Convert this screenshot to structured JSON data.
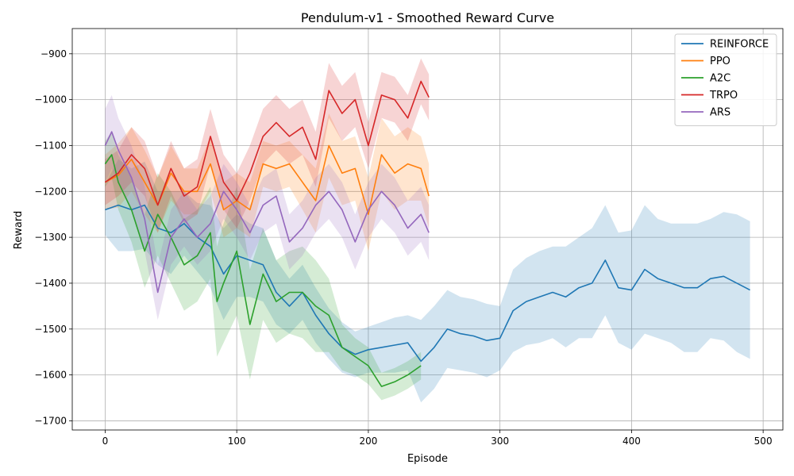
{
  "chart_data": {
    "type": "line",
    "title": "Pendulum-v1 - Smoothed Reward Curve",
    "xlabel": "Episode",
    "ylabel": "Reward",
    "xlim": [
      -25,
      515
    ],
    "ylim": [
      -1720,
      -845
    ],
    "xticks": [
      0,
      100,
      200,
      300,
      400,
      500
    ],
    "xtick_labels": [
      "0",
      "100",
      "200",
      "300",
      "400",
      "500"
    ],
    "yticks": [
      -1700,
      -1600,
      -1500,
      -1400,
      -1300,
      -1200,
      -1100,
      -1000,
      -900
    ],
    "ytick_labels": [
      "−1700",
      "−1600",
      "−1500",
      "−1400",
      "−1300",
      "−1200",
      "−1100",
      "−1000",
      "−900"
    ],
    "grid": true,
    "legend_position": "top-right",
    "series": [
      {
        "name": "REINFORCE",
        "color": "#1f77b4",
        "x": [
          0,
          10,
          20,
          30,
          40,
          50,
          60,
          70,
          80,
          90,
          100,
          110,
          120,
          130,
          140,
          150,
          160,
          170,
          180,
          190,
          200,
          210,
          220,
          230,
          240,
          250,
          260,
          270,
          280,
          290,
          300,
          310,
          320,
          330,
          340,
          350,
          360,
          370,
          380,
          390,
          400,
          410,
          420,
          430,
          440,
          450,
          460,
          470,
          480,
          490
        ],
        "y": [
          -1240,
          -1230,
          -1240,
          -1230,
          -1280,
          -1290,
          -1270,
          -1300,
          -1320,
          -1380,
          -1340,
          -1350,
          -1360,
          -1420,
          -1450,
          -1420,
          -1470,
          -1510,
          -1540,
          -1555,
          -1545,
          -1540,
          -1535,
          -1530,
          -1570,
          -1540,
          -1500,
          -1510,
          -1515,
          -1525,
          -1520,
          -1460,
          -1440,
          -1430,
          -1420,
          -1430,
          -1410,
          -1400,
          -1350,
          -1410,
          -1415,
          -1370,
          -1390,
          -1400,
          -1410,
          -1410,
          -1390,
          -1385,
          -1400,
          -1415
        ],
        "band": [
          55,
          100,
          90,
          95,
          80,
          90,
          70,
          75,
          90,
          100,
          90,
          80,
          80,
          70,
          60,
          60,
          60,
          55,
          55,
          50,
          50,
          55,
          60,
          60,
          90,
          90,
          85,
          80,
          80,
          80,
          70,
          90,
          95,
          100,
          100,
          110,
          110,
          120,
          120,
          120,
          130,
          140,
          130,
          130,
          140,
          140,
          130,
          140,
          150,
          150
        ]
      },
      {
        "name": "PPO",
        "color": "#ff7f0e",
        "x": [
          0,
          10,
          20,
          30,
          40,
          50,
          60,
          70,
          80,
          90,
          100,
          110,
          120,
          130,
          140,
          150,
          160,
          170,
          180,
          190,
          200,
          210,
          220,
          230,
          240,
          246
        ],
        "y": [
          -1180,
          -1165,
          -1130,
          -1180,
          -1230,
          -1160,
          -1200,
          -1200,
          -1140,
          -1240,
          -1220,
          -1240,
          -1140,
          -1150,
          -1140,
          -1180,
          -1220,
          -1100,
          -1160,
          -1150,
          -1250,
          -1120,
          -1160,
          -1140,
          -1150,
          -1210
        ],
        "band": [
          60,
          70,
          70,
          70,
          60,
          60,
          50,
          50,
          60,
          60,
          60,
          60,
          50,
          50,
          50,
          60,
          70,
          70,
          70,
          70,
          80,
          80,
          80,
          80,
          70,
          70
        ]
      },
      {
        "name": "A2C",
        "color": "#2ca02c",
        "x": [
          0,
          5,
          10,
          20,
          30,
          40,
          50,
          60,
          70,
          80,
          85,
          90,
          100,
          110,
          120,
          130,
          140,
          150,
          160,
          170,
          180,
          190,
          200,
          210,
          220,
          230,
          240
        ],
        "y": [
          -1140,
          -1120,
          -1180,
          -1240,
          -1330,
          -1250,
          -1300,
          -1360,
          -1340,
          -1290,
          -1440,
          -1400,
          -1330,
          -1490,
          -1380,
          -1440,
          -1420,
          -1420,
          -1450,
          -1470,
          -1540,
          -1560,
          -1580,
          -1625,
          -1615,
          -1600,
          -1580
        ],
        "band": [
          50,
          50,
          60,
          70,
          80,
          90,
          100,
          100,
          100,
          100,
          120,
          130,
          140,
          120,
          100,
          90,
          90,
          100,
          100,
          80,
          50,
          40,
          40,
          30,
          30,
          30,
          30
        ]
      },
      {
        "name": "TRPO",
        "color": "#d62728",
        "x": [
          0,
          10,
          20,
          30,
          40,
          50,
          60,
          70,
          80,
          90,
          100,
          110,
          120,
          130,
          140,
          150,
          160,
          170,
          180,
          190,
          200,
          210,
          220,
          230,
          240,
          246
        ],
        "y": [
          -1180,
          -1160,
          -1120,
          -1150,
          -1230,
          -1150,
          -1210,
          -1190,
          -1080,
          -1180,
          -1220,
          -1160,
          -1080,
          -1050,
          -1080,
          -1060,
          -1130,
          -980,
          -1030,
          -1000,
          -1100,
          -990,
          -1000,
          -1040,
          -960,
          -995
        ],
        "band": [
          50,
          50,
          60,
          60,
          60,
          60,
          60,
          60,
          60,
          60,
          60,
          60,
          60,
          60,
          60,
          60,
          60,
          60,
          60,
          60,
          50,
          50,
          50,
          50,
          50,
          50
        ]
      },
      {
        "name": "ARS",
        "color": "#9467bd",
        "x": [
          0,
          5,
          10,
          20,
          30,
          40,
          50,
          60,
          70,
          80,
          90,
          100,
          110,
          120,
          130,
          140,
          150,
          160,
          170,
          180,
          190,
          200,
          210,
          220,
          230,
          240,
          246
        ],
        "y": [
          -1100,
          -1070,
          -1110,
          -1170,
          -1260,
          -1420,
          -1300,
          -1260,
          -1300,
          -1270,
          -1200,
          -1240,
          -1290,
          -1230,
          -1210,
          -1310,
          -1280,
          -1230,
          -1200,
          -1240,
          -1310,
          -1240,
          -1200,
          -1230,
          -1280,
          -1250,
          -1290
        ],
        "band": [
          80,
          80,
          70,
          70,
          70,
          60,
          60,
          60,
          60,
          60,
          60,
          60,
          60,
          60,
          60,
          60,
          60,
          60,
          60,
          60,
          60,
          60,
          60,
          60,
          60,
          60,
          60
        ]
      }
    ]
  }
}
